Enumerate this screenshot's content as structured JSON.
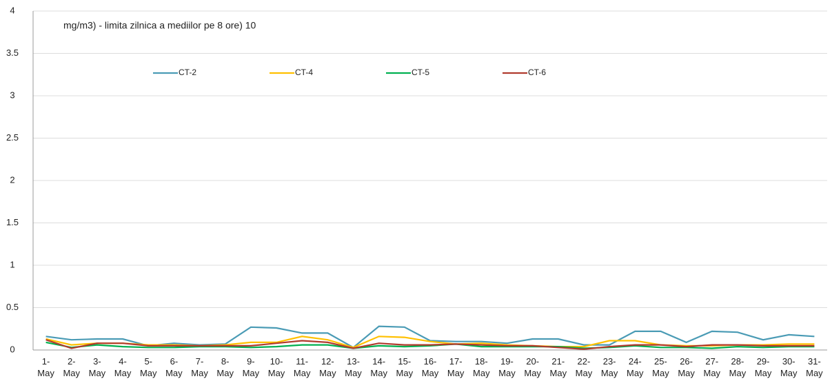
{
  "chart_data": {
    "type": "line",
    "title": "mg/m3) - limita zilnica a mediilor pe 8 ore) 10",
    "categories": [
      "1- May",
      "2- May",
      "3- May",
      "4- May",
      "5- May",
      "6- May",
      "7- May",
      "8- May",
      "9- May",
      "10- May",
      "11- May",
      "12- May",
      "13- May",
      "14- May",
      "15- May",
      "16- May",
      "17- May",
      "18- May",
      "19- May",
      "20- May",
      "21- May",
      "22- May",
      "23- May",
      "24- May",
      "25- May",
      "26- May",
      "27- May",
      "28- May",
      "29- May",
      "30- May",
      "31- May"
    ],
    "series": [
      {
        "name": "CT-2",
        "color": "#4a9bb5",
        "values": [
          0.16,
          0.12,
          0.13,
          0.13,
          0.05,
          0.08,
          0.06,
          0.07,
          0.27,
          0.26,
          0.2,
          0.2,
          0.03,
          0.28,
          0.27,
          0.11,
          0.1,
          0.1,
          0.08,
          0.13,
          0.13,
          0.06,
          0.06,
          0.22,
          0.22,
          0.09,
          0.22,
          0.21,
          0.12,
          0.18,
          0.16
        ]
      },
      {
        "name": "CT-4",
        "color": "#ffc000",
        "values": [
          0.13,
          0.06,
          0.08,
          0.08,
          0.06,
          0.06,
          0.05,
          0.06,
          0.09,
          0.09,
          0.16,
          0.12,
          0.03,
          0.16,
          0.15,
          0.1,
          0.07,
          0.08,
          0.06,
          0.05,
          0.04,
          0.04,
          0.11,
          0.11,
          0.06,
          0.05,
          0.05,
          0.06,
          0.06,
          0.07,
          0.07
        ]
      },
      {
        "name": "CT-5",
        "color": "#00b050",
        "values": [
          0.09,
          0.03,
          0.06,
          0.04,
          0.03,
          0.03,
          0.04,
          0.04,
          0.03,
          0.04,
          0.06,
          0.06,
          0.02,
          0.05,
          0.04,
          0.05,
          0.07,
          0.04,
          0.04,
          0.04,
          0.04,
          0.02,
          0.03,
          0.05,
          0.03,
          0.03,
          0.02,
          0.04,
          0.03,
          0.04,
          0.04
        ]
      },
      {
        "name": "CT-6",
        "color": "#b03a2e",
        "values": [
          0.12,
          0.02,
          0.08,
          0.08,
          0.05,
          0.05,
          0.05,
          0.05,
          0.05,
          0.08,
          0.11,
          0.09,
          0.02,
          0.08,
          0.06,
          0.06,
          0.07,
          0.06,
          0.05,
          0.05,
          0.03,
          0.01,
          0.04,
          0.06,
          0.06,
          0.04,
          0.06,
          0.06,
          0.05,
          0.05,
          0.05
        ]
      }
    ],
    "ylim": [
      0,
      4
    ],
    "yticks": [
      0,
      0.5,
      1,
      1.5,
      2,
      2.5,
      3,
      3.5,
      4
    ],
    "grid": true
  }
}
